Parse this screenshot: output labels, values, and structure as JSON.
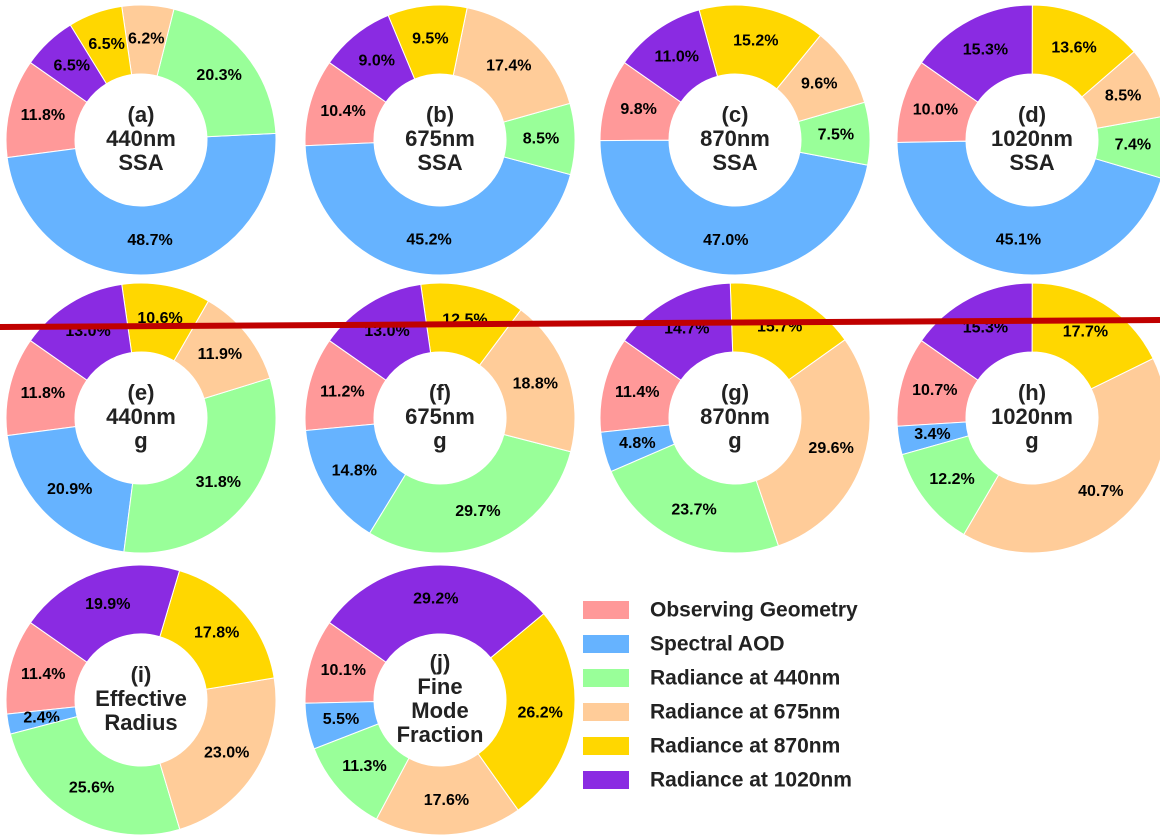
{
  "legend": {
    "labels": [
      "Observing Geometry",
      "Spectral AOD",
      "Radiance at 440nm",
      "Radiance at 675nm",
      "Radiance at 870nm",
      "Radiance at 1020nm"
    ],
    "colors": [
      "#ff9999",
      "#66b3ff",
      "#99ff99",
      "#ffcc99",
      "#ffd700",
      "#8a2be2"
    ]
  },
  "chart_data": [
    {
      "type": "pie",
      "title": [
        "(a)",
        "440nm",
        "SSA"
      ],
      "values": [
        11.8,
        48.7,
        20.3,
        6.2,
        6.5,
        6.5
      ],
      "value_labels": [
        "11.8%",
        "48.7%",
        "20.3%",
        "6.2%",
        "6.5%",
        "6.5%"
      ]
    },
    {
      "type": "pie",
      "title": [
        "(b)",
        "675nm",
        "SSA"
      ],
      "values": [
        10.4,
        45.2,
        8.5,
        17.4,
        9.5,
        9.0
      ],
      "value_labels": [
        "10.4%",
        "45.2%",
        "8.5%",
        "17.4%",
        "9.5%",
        "9.0%"
      ]
    },
    {
      "type": "pie",
      "title": [
        "(c)",
        "870nm",
        "SSA"
      ],
      "values": [
        9.8,
        47.0,
        7.5,
        9.6,
        15.2,
        11.0
      ],
      "value_labels": [
        "9.8%",
        "47.0%",
        "7.5%",
        "9.6%",
        "15.2%",
        "11.0%"
      ]
    },
    {
      "type": "pie",
      "title": [
        "(d)",
        "1020nm",
        "SSA"
      ],
      "values": [
        10.0,
        45.1,
        7.4,
        8.5,
        13.6,
        15.3
      ],
      "value_labels": [
        "10.0%",
        "45.1%",
        "7.4%",
        "8.5%",
        "13.6%",
        "15.3%"
      ]
    },
    {
      "type": "pie",
      "title": [
        "(e)",
        "440nm",
        "g"
      ],
      "values": [
        11.8,
        20.9,
        31.8,
        11.9,
        10.6,
        13.0
      ],
      "value_labels": [
        "11.8%",
        "20.9%",
        "31.8%",
        "11.9%",
        "10.6%",
        "13.0%"
      ]
    },
    {
      "type": "pie",
      "title": [
        "(f)",
        "675nm",
        "g"
      ],
      "values": [
        11.2,
        14.8,
        29.7,
        18.8,
        12.5,
        13.0
      ],
      "value_labels": [
        "11.2%",
        "14.8%",
        "29.7%",
        "18.8%",
        "12.5%",
        "13.0%"
      ]
    },
    {
      "type": "pie",
      "title": [
        "(g)",
        "870nm",
        "g"
      ],
      "values": [
        11.4,
        4.8,
        23.7,
        29.6,
        15.7,
        14.7
      ],
      "value_labels": [
        "11.4%",
        "4.8%",
        "23.7%",
        "29.6%",
        "15.7%",
        "14.7%"
      ]
    },
    {
      "type": "pie",
      "title": [
        "(h)",
        "1020nm",
        "g"
      ],
      "values": [
        10.7,
        3.4,
        12.2,
        40.7,
        17.7,
        15.3
      ],
      "value_labels": [
        "10.7%",
        "3.4%",
        "12.2%",
        "40.7%",
        "17.7%",
        "15.3%"
      ]
    },
    {
      "type": "pie",
      "title": [
        "(i)",
        "Effective",
        "Radius"
      ],
      "values": [
        11.4,
        2.4,
        25.6,
        23.0,
        17.8,
        19.9
      ],
      "value_labels": [
        "11.4%",
        "2.4%",
        "25.6%",
        "23.0%",
        "17.8%",
        "19.9%"
      ]
    },
    {
      "type": "pie",
      "title": [
        "(j)",
        "Fine",
        "Mode",
        "Fraction"
      ],
      "values": [
        10.1,
        5.5,
        11.3,
        17.6,
        26.2,
        29.2
      ],
      "value_labels": [
        "10.1%",
        "5.5%",
        "11.3%",
        "17.6%",
        "26.2%",
        "29.2%"
      ]
    }
  ]
}
